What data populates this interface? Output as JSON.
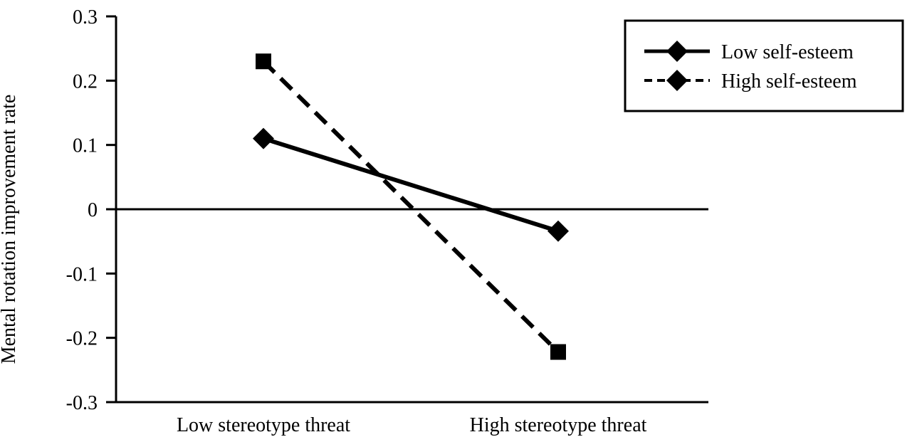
{
  "chart_data": {
    "type": "line",
    "title": "",
    "xlabel": "",
    "ylabel": "Mental rotation improvement rate",
    "categories": [
      "Low stereotype threat",
      "High stereotype threat"
    ],
    "ylim": [
      -0.3,
      0.3
    ],
    "yticks": [
      0.3,
      0.2,
      0.1,
      0,
      -0.1,
      -0.2,
      -0.3
    ],
    "ytick_labels": [
      "0.3",
      "0.2",
      "0.1",
      "0",
      "-0.1",
      "-0.2",
      "-0.3"
    ],
    "series": [
      {
        "name": "Low self-esteem",
        "values": [
          0.11,
          -0.034
        ],
        "line_style": "solid",
        "marker": "diamond",
        "color": "#000000"
      },
      {
        "name": "High self-esteem",
        "values": [
          0.23,
          -0.222
        ],
        "line_style": "dashed",
        "marker": "square",
        "legend_marker": "diamond",
        "color": "#000000"
      }
    ],
    "zero_line": true,
    "grid": false,
    "legend": {
      "position": "top-right"
    }
  }
}
